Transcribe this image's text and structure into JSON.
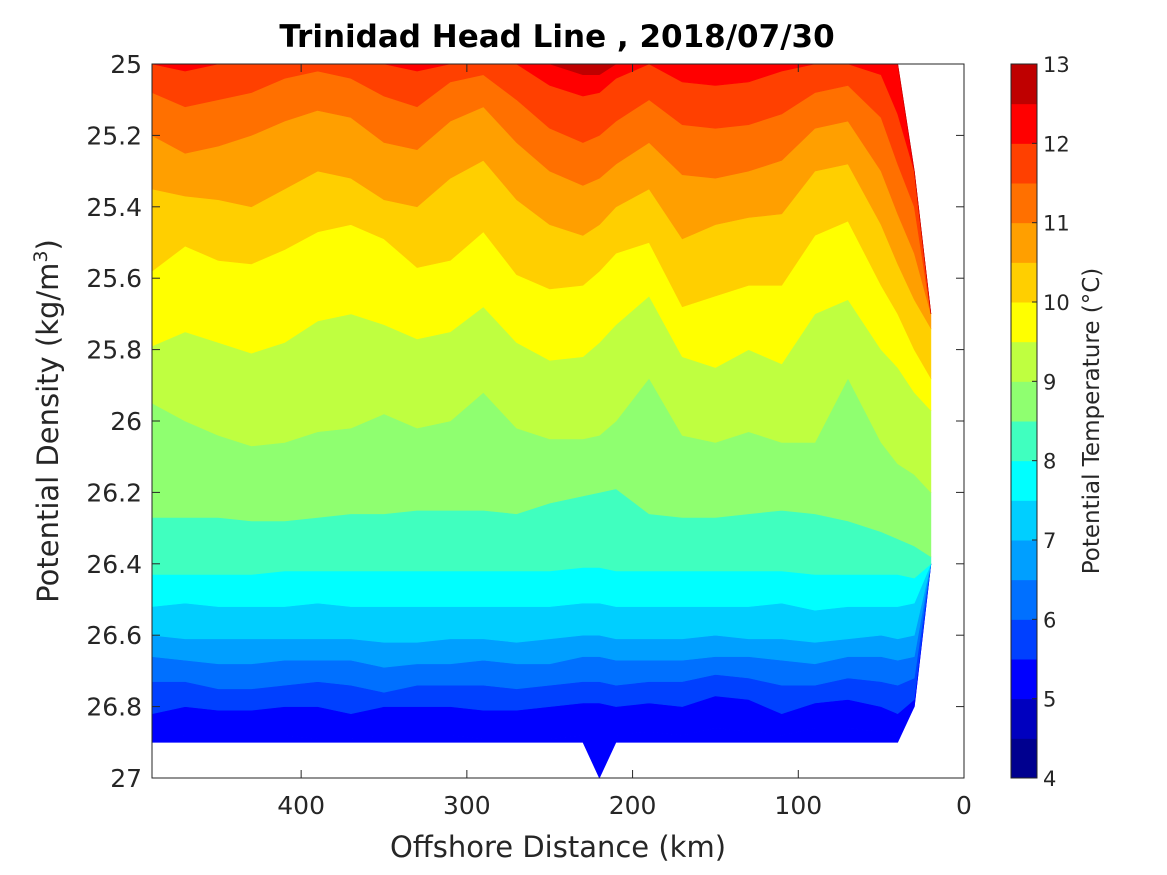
{
  "chart_data": {
    "type": "filled-contour",
    "title": "Trinidad Head Line , 2018/07/30",
    "xlabel": "Offshore Distance (km)",
    "ylabel": "Potential Density (kg/m",
    "ylabel_sup": "3",
    "ylabel_close": ")",
    "colorbar_label": "Potential Temperature (°C)",
    "x_reversed": true,
    "y_reversed": true,
    "xlim": [
      0,
      490
    ],
    "ylim": [
      25,
      27
    ],
    "x_ticks": [
      400,
      300,
      200,
      100,
      0
    ],
    "y_ticks": [
      25,
      25.2,
      25.4,
      25.6,
      25.8,
      26,
      26.2,
      26.4,
      26.6,
      26.8,
      27
    ],
    "colorbar_ticks": [
      4,
      5,
      6,
      7,
      8,
      9,
      10,
      11,
      12,
      13
    ],
    "colorbar_range": [
      4,
      13
    ],
    "levels": [
      4,
      4.5,
      5,
      5.5,
      6,
      6.5,
      7,
      7.5,
      8,
      8.5,
      9,
      9.5,
      10,
      10.5,
      11,
      11.5,
      12,
      12.5,
      13
    ],
    "level_colors": [
      "#00008f",
      "#0000bf",
      "#0000ff",
      "#0040ff",
      "#0070ff",
      "#009fff",
      "#00cfff",
      "#00ffff",
      "#40ffbf",
      "#8fff70",
      "#bfff40",
      "#ffff00",
      "#ffcf00",
      "#ff9f00",
      "#ff7000",
      "#ff4000",
      "#ff0000",
      "#bf0000"
    ],
    "station_x": [
      490,
      470,
      450,
      430,
      410,
      390,
      370,
      350,
      330,
      310,
      290,
      270,
      250,
      230,
      220,
      210,
      190,
      170,
      150,
      130,
      110,
      90,
      70,
      50,
      40,
      30,
      20
    ],
    "isopycnals": [
      {
        "level": 5,
        "y": [
          26.9,
          26.88,
          26.88,
          26.88,
          26.88,
          26.89,
          26.89,
          26.88,
          26.88,
          26.88,
          26.89,
          26.89,
          26.89,
          26.88,
          26.88,
          26.88,
          26.87,
          26.88,
          26.86,
          26.87,
          26.88,
          26.86,
          26.86,
          26.87,
          26.88,
          26.85,
          26.85
        ]
      },
      {
        "level": 5.5,
        "y": [
          26.82,
          26.8,
          26.81,
          26.81,
          26.8,
          26.8,
          26.82,
          26.8,
          26.8,
          26.8,
          26.81,
          26.81,
          26.8,
          26.79,
          26.79,
          26.8,
          26.79,
          26.8,
          26.77,
          26.78,
          26.82,
          26.79,
          26.78,
          26.8,
          26.82,
          26.78,
          26.78
        ]
      },
      {
        "level": 6,
        "y": [
          26.73,
          26.73,
          26.75,
          26.75,
          26.74,
          26.73,
          26.74,
          26.76,
          26.74,
          26.74,
          26.74,
          26.75,
          26.74,
          26.73,
          26.73,
          26.74,
          26.73,
          26.73,
          26.71,
          26.72,
          26.74,
          26.74,
          26.72,
          26.73,
          26.74,
          26.72,
          26.72
        ]
      },
      {
        "level": 6.5,
        "y": [
          26.66,
          26.67,
          26.68,
          26.68,
          26.67,
          26.67,
          26.67,
          26.69,
          26.68,
          26.68,
          26.67,
          26.68,
          26.68,
          26.66,
          26.66,
          26.67,
          26.67,
          26.67,
          26.66,
          26.66,
          26.67,
          26.68,
          26.66,
          26.66,
          26.67,
          26.66,
          26.66
        ]
      },
      {
        "level": 7,
        "y": [
          26.6,
          26.61,
          26.61,
          26.61,
          26.61,
          26.61,
          26.61,
          26.62,
          26.62,
          26.61,
          26.61,
          26.62,
          26.61,
          26.6,
          26.6,
          26.61,
          26.61,
          26.61,
          26.6,
          26.61,
          26.61,
          26.62,
          26.61,
          26.6,
          26.61,
          26.6,
          26.6
        ]
      },
      {
        "level": 7.5,
        "y": [
          26.52,
          26.51,
          26.52,
          26.52,
          26.52,
          26.51,
          26.52,
          26.52,
          26.52,
          26.52,
          26.52,
          26.52,
          26.52,
          26.51,
          26.51,
          26.52,
          26.52,
          26.52,
          26.52,
          26.52,
          26.51,
          26.53,
          26.52,
          26.52,
          26.52,
          26.51,
          26.5
        ]
      },
      {
        "level": 8,
        "y": [
          26.43,
          26.43,
          26.43,
          26.43,
          26.42,
          26.42,
          26.42,
          26.42,
          26.42,
          26.42,
          26.42,
          26.42,
          26.42,
          26.41,
          26.41,
          26.42,
          26.42,
          26.42,
          26.42,
          26.42,
          26.42,
          26.43,
          26.43,
          26.43,
          26.43,
          26.44,
          26.42
        ]
      },
      {
        "level": 8.5,
        "y": [
          26.27,
          26.27,
          26.27,
          26.28,
          26.28,
          26.27,
          26.26,
          26.26,
          26.25,
          26.25,
          26.25,
          26.26,
          26.23,
          26.21,
          26.2,
          26.19,
          26.26,
          26.27,
          26.27,
          26.26,
          26.25,
          26.26,
          26.28,
          26.31,
          26.33,
          26.35,
          26.38
        ]
      },
      {
        "level": 9,
        "y": [
          25.95,
          26.0,
          26.04,
          26.07,
          26.06,
          26.03,
          26.02,
          25.98,
          26.02,
          26.0,
          25.92,
          26.02,
          26.05,
          26.05,
          26.04,
          26.0,
          25.88,
          26.04,
          26.06,
          26.03,
          26.06,
          26.06,
          25.88,
          26.06,
          26.12,
          26.15,
          26.2
        ]
      },
      {
        "level": 9.5,
        "y": [
          25.79,
          25.75,
          25.78,
          25.81,
          25.78,
          25.72,
          25.7,
          25.73,
          25.77,
          25.75,
          25.68,
          25.78,
          25.83,
          25.82,
          25.78,
          25.73,
          25.65,
          25.82,
          25.85,
          25.8,
          25.84,
          25.7,
          25.66,
          25.8,
          25.85,
          25.92,
          25.97
        ]
      },
      {
        "level": 10,
        "y": [
          25.58,
          25.51,
          25.55,
          25.56,
          25.52,
          25.47,
          25.45,
          25.49,
          25.57,
          25.55,
          25.47,
          25.59,
          25.63,
          25.62,
          25.58,
          25.53,
          25.5,
          25.68,
          25.65,
          25.62,
          25.62,
          25.48,
          25.44,
          25.62,
          25.7,
          25.8,
          25.88
        ]
      },
      {
        "level": 10.5,
        "y": [
          25.35,
          25.37,
          25.38,
          25.4,
          25.35,
          25.3,
          25.32,
          25.38,
          25.4,
          25.32,
          25.27,
          25.38,
          25.45,
          25.48,
          25.45,
          25.4,
          25.35,
          25.49,
          25.45,
          25.43,
          25.42,
          25.3,
          25.28,
          25.45,
          25.56,
          25.66,
          25.74
        ]
      },
      {
        "level": 11,
        "y": [
          25.2,
          25.25,
          25.23,
          25.2,
          25.16,
          25.13,
          25.15,
          25.22,
          25.24,
          25.16,
          25.12,
          25.22,
          25.3,
          25.34,
          25.32,
          25.28,
          25.22,
          25.31,
          25.32,
          25.3,
          25.27,
          25.18,
          25.16,
          25.3,
          25.42,
          25.53,
          25.62
        ]
      },
      {
        "level": 11.5,
        "y": [
          25.08,
          25.12,
          25.1,
          25.08,
          25.04,
          25.02,
          25.04,
          25.09,
          25.12,
          25.05,
          25.03,
          25.1,
          25.18,
          25.22,
          25.2,
          25.16,
          25.1,
          25.17,
          25.18,
          25.17,
          25.14,
          25.08,
          25.06,
          25.15,
          25.28,
          25.4,
          25.5
        ]
      },
      {
        "level": 12,
        "y": [
          25.0,
          25.02,
          25.0,
          25.0,
          25.0,
          25.0,
          25.0,
          25.0,
          25.02,
          25.0,
          25.0,
          25.0,
          25.06,
          25.09,
          25.08,
          25.04,
          25.0,
          25.05,
          25.06,
          25.05,
          25.02,
          25.0,
          25.0,
          25.03,
          25.14,
          25.26,
          25.38
        ]
      },
      {
        "level": 12.5,
        "y": [
          25.0,
          25.0,
          25.0,
          25.0,
          25.0,
          25.0,
          25.0,
          25.0,
          25.0,
          25.0,
          25.0,
          25.0,
          25.0,
          25.03,
          25.03,
          25.0,
          25.0,
          25.0,
          25.0,
          25.0,
          25.0,
          25.0,
          25.0,
          25.0,
          25.0,
          25.0,
          25.0
        ]
      }
    ],
    "data_top": [
      25,
      25,
      25,
      25,
      25,
      25,
      25,
      25,
      25,
      25,
      25,
      25,
      25,
      25,
      25,
      25,
      25,
      25,
      25,
      25,
      25,
      25,
      25,
      25,
      25,
      25.3,
      25.7
    ],
    "data_bottom": [
      26.9,
      26.9,
      26.9,
      26.9,
      26.9,
      26.9,
      26.9,
      26.9,
      26.9,
      26.9,
      26.9,
      26.9,
      26.9,
      26.9,
      27.0,
      26.9,
      26.9,
      26.9,
      26.9,
      26.9,
      26.9,
      26.9,
      26.9,
      26.9,
      26.9,
      26.8,
      26.4
    ],
    "deep_color": "#0000ff",
    "missing_color": "#ffffff",
    "grid": false
  }
}
